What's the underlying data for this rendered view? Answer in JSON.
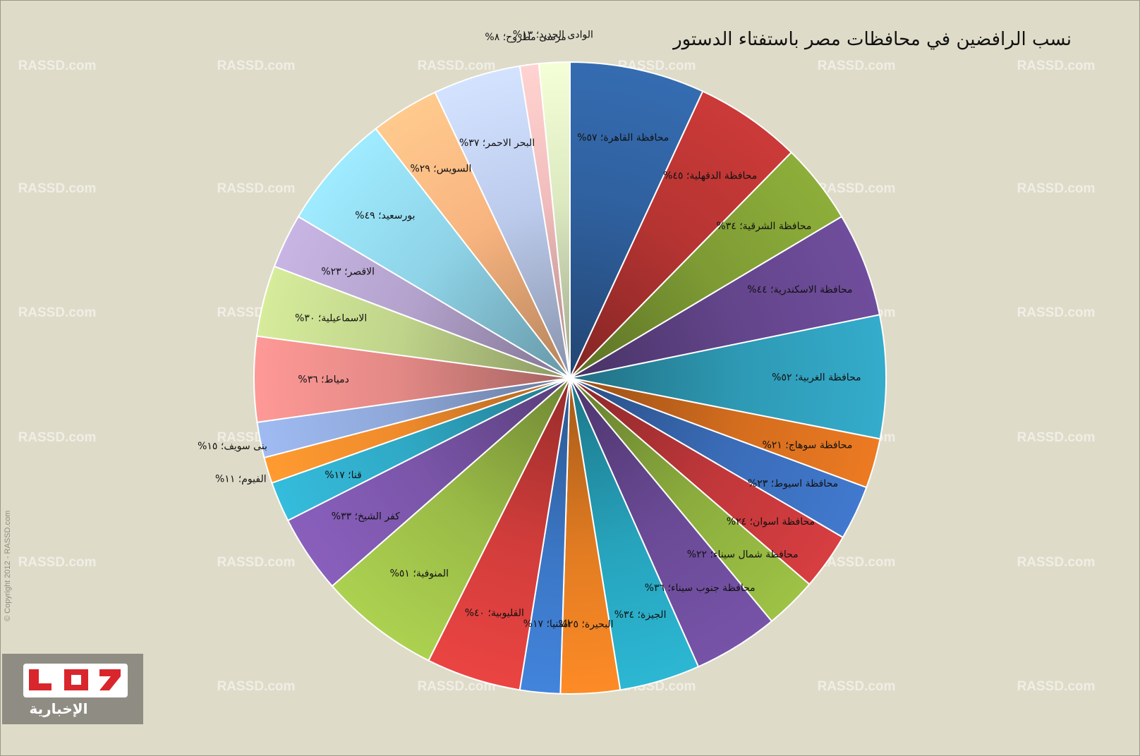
{
  "header": {
    "title": "نسب الرافضين في محافظات مصر باستفتاء الدستور"
  },
  "watermark": {
    "text": "RASSD.com"
  },
  "copyright": {
    "text": "© Copyright 2012 - RASSD.com"
  },
  "logo": {
    "text": "الإخبارية",
    "icon": "rassd-logo-icon"
  },
  "chart_data": {
    "type": "pie",
    "title": "نسب الرافضين في محافظات مصر باستفتاء الدستور",
    "start": "top",
    "direction": "clockwise",
    "slices": [
      {
        "label": "محافظة القاهرة؛ ٥٧%",
        "name": "محافظة القاهرة",
        "value": 57,
        "color": "#2f609e"
      },
      {
        "label": "محافظة الدقهلية؛ ٤٥%",
        "name": "محافظة الدقهلية",
        "value": 45,
        "color": "#b53432"
      },
      {
        "label": "محافظة الشرقية؛ ٣٤%",
        "name": "محافظة الشرقية",
        "value": 34,
        "color": "#7e9b34"
      },
      {
        "label": "محافظة الاسكندرية؛ ٤٤%",
        "name": "محافظة الاسكندرية",
        "value": 44,
        "color": "#63458b"
      },
      {
        "label": "محافظة الغربية؛ ٥٢%",
        "name": "محافظة الغربية",
        "value": 52,
        "color": "#2e9ab5"
      },
      {
        "label": "محافظة سوهاج؛ ٢١%",
        "name": "محافظة سوهاج",
        "value": 21,
        "color": "#d36d1e"
      },
      {
        "label": "محافظة اسيوط؛ ٢٣%",
        "name": "محافظة اسيوط",
        "value": 23,
        "color": "#3a6cb8"
      },
      {
        "label": "محافظة اسوان؛ ٢٤%",
        "name": "محافظة اسوان",
        "value": 24,
        "color": "#c0373a"
      },
      {
        "label": "محافظة شمال سيناء؛ ٢٢%",
        "name": "محافظة شمال سيناء",
        "value": 22,
        "color": "#8cad3e"
      },
      {
        "label": "محافظة جنوب سيناء؛ ٣٦%",
        "name": "محافظة جنوب سيناء",
        "value": 36,
        "color": "#6a4a96"
      },
      {
        "label": "الجيزة؛ ٣٤%",
        "name": "الجيزة",
        "value": 34,
        "color": "#27a3bc"
      },
      {
        "label": "البحيرة؛ ٢٥%",
        "name": "البحيرة",
        "value": 25,
        "color": "#e27c22"
      },
      {
        "label": "المنيا؛ ١٧%",
        "name": "المنيا",
        "value": 17,
        "color": "#3b76c4"
      },
      {
        "label": "القليوبية؛ ٤٠%",
        "name": "القليوبية",
        "value": 40,
        "color": "#d13d3b"
      },
      {
        "label": "المنوفية؛ ٥١%",
        "name": "المنوفية",
        "value": 51,
        "color": "#9abb47"
      },
      {
        "label": "كفر الشيخ؛ ٣٣%",
        "name": "كفر الشيخ",
        "value": 33,
        "color": "#7a55a8"
      },
      {
        "label": "قنا؛ ١٧%",
        "name": "قنا",
        "value": 17,
        "color": "#2fa8c4"
      },
      {
        "label": "الفيوم؛ ١١%",
        "name": "الفيوم",
        "value": 11,
        "color": "#ee8a2b"
      },
      {
        "label": "بنى سويف؛ ١٥%",
        "name": "بنى سويف",
        "value": 15,
        "color": "#8ea7d8"
      },
      {
        "label": "دمياط؛ ٣٦%",
        "name": "دمياط",
        "value": 36,
        "color": "#e38986"
      },
      {
        "label": "الاسماعيلية؛ ٣٠%",
        "name": "الاسماعيلية",
        "value": 30,
        "color": "#bfd38a"
      },
      {
        "label": "الاقصر؛ ٢٣%",
        "name": "الاقصر",
        "value": 23,
        "color": "#b3a2cc"
      },
      {
        "label": "بورسعيد؛ ٤٩%",
        "name": "بورسعيد",
        "value": 49,
        "color": "#8ed2e6"
      },
      {
        "label": "السويس؛ ٢٩%",
        "name": "السويس",
        "value": 29,
        "color": "#f8b47f"
      },
      {
        "label": "البحر الاحمر؛ ٣٧%",
        "name": "البحر الاحمر",
        "value": 37,
        "color": "#bccbec"
      },
      {
        "label": "مرسى مطروح؛ ٨%",
        "name": "مرسى مطروح",
        "value": 8,
        "color": "#f0bcbb"
      },
      {
        "label": "الوادى الجديد؛ ١٣%",
        "name": "الوادى الجديد",
        "value": 13,
        "color": "#dbe8c0"
      }
    ]
  }
}
